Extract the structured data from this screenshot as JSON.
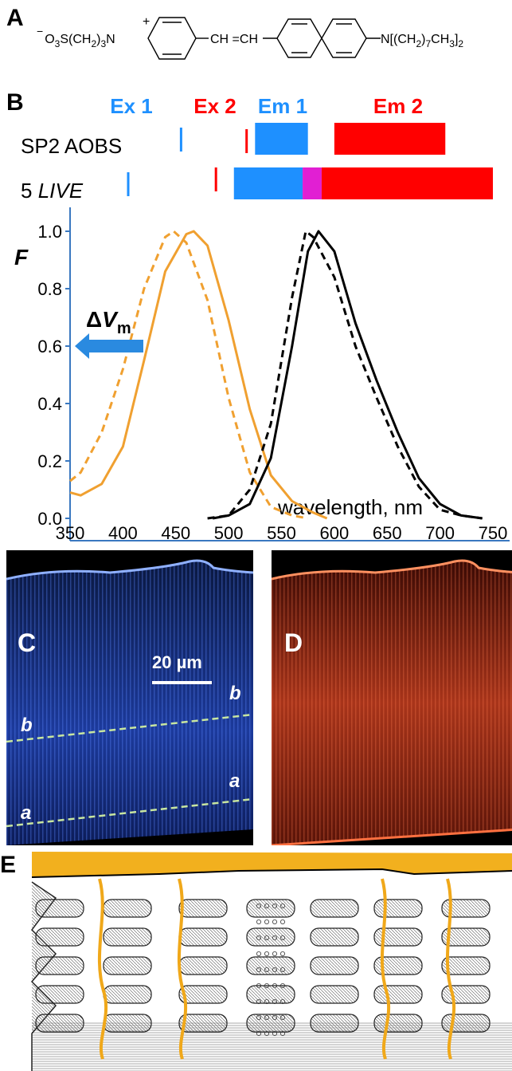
{
  "panels": {
    "a": "A",
    "b": "B",
    "c": "C",
    "d": "D",
    "e": "E"
  },
  "structure": {
    "sulfonate": "O",
    "charge_neg": "−",
    "charge_pos": "+",
    "left_chain": "S(CH",
    "left_chain_sub2": "2",
    "left_chain_close": ")",
    "left_chain_sub3": "3",
    "nitrogen": "N",
    "sulfonate_sub": "3",
    "vinyl": "CH =CH",
    "amine": "N[(CH",
    "amine_sub2": "2",
    "amine_mid": ")",
    "amine_sub7": "7",
    "amine_ch": "CH",
    "amine_sub3": "3",
    "amine_close": "]",
    "amine_sub2b": "2"
  },
  "filters": {
    "headers": [
      {
        "label": "Ex 1",
        "color": "#1e90ff"
      },
      {
        "label": "Ex 2",
        "color": "#ff0000"
      },
      {
        "label": "Em 1",
        "color": "#1e90ff"
      },
      {
        "label": "Em 2",
        "color": "#ff0000"
      }
    ],
    "rows": [
      {
        "name_plain": "SP2 AOBS",
        "name_prefix": "",
        "name_italic": ""
      },
      {
        "name_plain": "",
        "name_prefix": "5 ",
        "name_italic": "LIVE"
      }
    ],
    "sp2": {
      "ex1_line_nm": 455,
      "ex2_line_nm": 517,
      "em1_band_nm": [
        525,
        575
      ],
      "em2_band_nm": [
        600,
        705
      ]
    },
    "live5": {
      "ex1_line_nm": 405,
      "ex2_line_nm": 488,
      "em1_band_nm": [
        505,
        570
      ],
      "overlap_band_nm": [
        570,
        588
      ],
      "em2_band_nm": [
        588,
        750
      ]
    },
    "colors": {
      "blue": "#1e90ff",
      "red": "#ff0000",
      "overlap": "#e11fd3"
    }
  },
  "chart_data": {
    "type": "line",
    "ylabel": "F",
    "xlabel": "wavelength, nm",
    "xlim": [
      350,
      750
    ],
    "ylim": [
      0.0,
      1.0
    ],
    "xticks": [
      350,
      400,
      450,
      500,
      550,
      600,
      650,
      700,
      750
    ],
    "yticks": [
      "0.0",
      "0.2",
      "0.4",
      "0.6",
      "0.8",
      "1.0"
    ],
    "annotation": {
      "delta": "ΔV",
      "sub": "m"
    },
    "series": [
      {
        "role": "excitation",
        "style": "solid",
        "color": "#f0a030",
        "x": [
          350,
          360,
          380,
          400,
          420,
          440,
          460,
          467,
          480,
          500,
          520,
          540,
          560,
          580,
          593
        ],
        "y": [
          0.09,
          0.08,
          0.12,
          0.25,
          0.55,
          0.86,
          0.99,
          1.0,
          0.95,
          0.69,
          0.38,
          0.15,
          0.06,
          0.02,
          0.0
        ]
      },
      {
        "role": "excitation-shifted",
        "style": "dashed",
        "color": "#f0a030",
        "x": [
          350,
          360,
          380,
          400,
          420,
          440,
          448,
          460,
          480,
          500,
          520,
          540,
          560,
          575
        ],
        "y": [
          0.13,
          0.16,
          0.3,
          0.52,
          0.8,
          0.98,
          1.0,
          0.96,
          0.76,
          0.42,
          0.16,
          0.04,
          0.01,
          0.0
        ]
      },
      {
        "role": "emission",
        "style": "solid",
        "color": "#000000",
        "x": [
          485,
          500,
          520,
          540,
          560,
          575,
          585,
          600,
          620,
          640,
          660,
          680,
          700,
          720,
          740
        ],
        "y": [
          0.0,
          0.01,
          0.05,
          0.21,
          0.6,
          0.93,
          1.0,
          0.93,
          0.68,
          0.48,
          0.3,
          0.14,
          0.05,
          0.01,
          0.0
        ]
      },
      {
        "role": "emission-shifted",
        "style": "dashed",
        "color": "#000000",
        "x": [
          480,
          500,
          520,
          540,
          560,
          573,
          580,
          600,
          620,
          640,
          660,
          680,
          700,
          720,
          740
        ],
        "y": [
          0.0,
          0.01,
          0.1,
          0.33,
          0.77,
          1.0,
          0.98,
          0.84,
          0.6,
          0.42,
          0.25,
          0.11,
          0.03,
          0.01,
          0.0
        ]
      }
    ]
  },
  "micrographs": {
    "scale_label": "20 µm",
    "line_b": "b",
    "line_a": "a",
    "blue_color": "#3a6ee8",
    "red_color": "#e0401e",
    "dashed_color": "#c8e6a0"
  },
  "drawing": {
    "membrane_color": "#f2b01e",
    "tubule_color": "#f0a81a"
  }
}
